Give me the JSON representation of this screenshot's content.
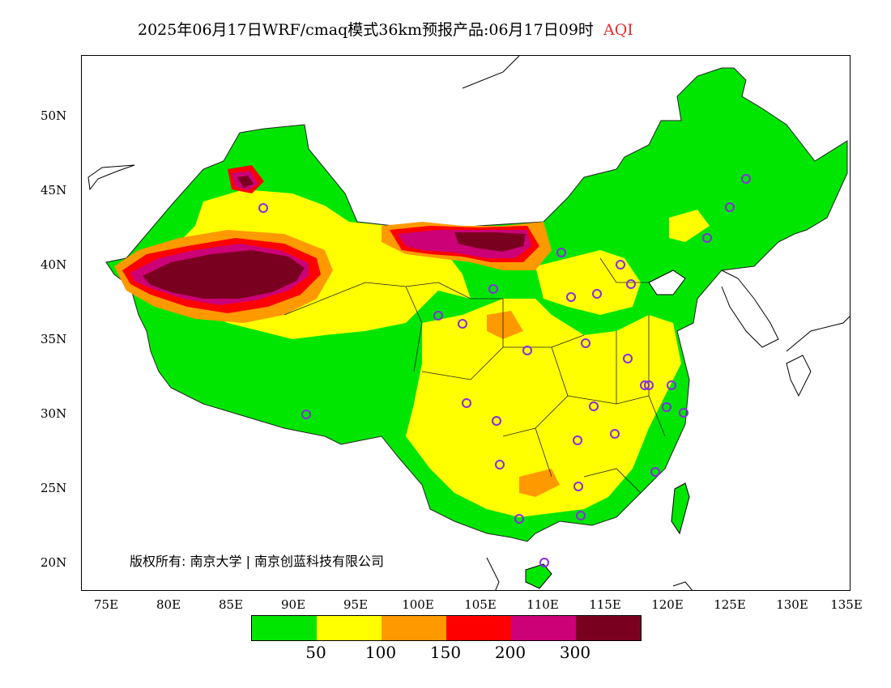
{
  "title": {
    "main": "2025年06月17日WRF/cmaq模式36km预报产品:06月17日09时",
    "variable": "AQI"
  },
  "lat_labels": [
    "50N",
    "45N",
    "40N",
    "35N",
    "30N",
    "25N",
    "20N"
  ],
  "lon_labels": [
    "75E",
    "80E",
    "85E",
    "90E",
    "95E",
    "100E",
    "105E",
    "110E",
    "115E",
    "120E",
    "125E",
    "130E",
    "135E"
  ],
  "copyright": "版权所有: 南京大学 | 南京创蓝科技有限公司",
  "legend": {
    "colors": [
      "#00e600",
      "#ffff00",
      "#ff9900",
      "#ff0000",
      "#cc0077",
      "#7a0020"
    ],
    "labels": [
      "50",
      "100",
      "150",
      "200",
      "300"
    ]
  },
  "map_colors": {
    "good": "#00e600",
    "moderate": "#ffff00",
    "sensitive": "#ff9900",
    "unhealthy": "#ff0000",
    "very_unhealthy": "#cc0077",
    "hazardous": "#7a0020",
    "station_marker": "#8a2be2"
  }
}
